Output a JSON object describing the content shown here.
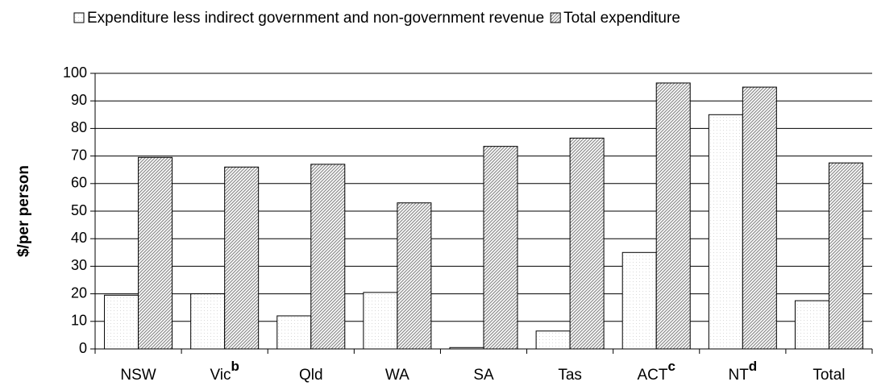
{
  "chart_data": {
    "type": "bar",
    "y_label": "$/per person",
    "categories": [
      "NSW",
      "Vic",
      "Qld",
      "WA",
      "SA",
      "Tas",
      "ACT",
      "NT",
      "Total"
    ],
    "category_notes": [
      null,
      "b",
      null,
      null,
      null,
      null,
      "c",
      "d",
      null
    ],
    "series": [
      {
        "name": "Expenditure less indirect government and non-government revenue",
        "color": "#d9d9d9",
        "values": [
          19.5,
          20,
          12,
          20.5,
          0.5,
          6.5,
          35,
          85,
          17.5
        ]
      },
      {
        "name": "Total expenditure",
        "color": "#8c8c8c",
        "values": [
          69.5,
          66,
          67,
          53,
          73.5,
          76.5,
          96.5,
          95,
          67.5
        ]
      }
    ],
    "ylim": [
      0,
      100
    ],
    "yticks": [
      0,
      10,
      20,
      30,
      40,
      50,
      60,
      70,
      80,
      90,
      100
    ],
    "grid": true
  }
}
